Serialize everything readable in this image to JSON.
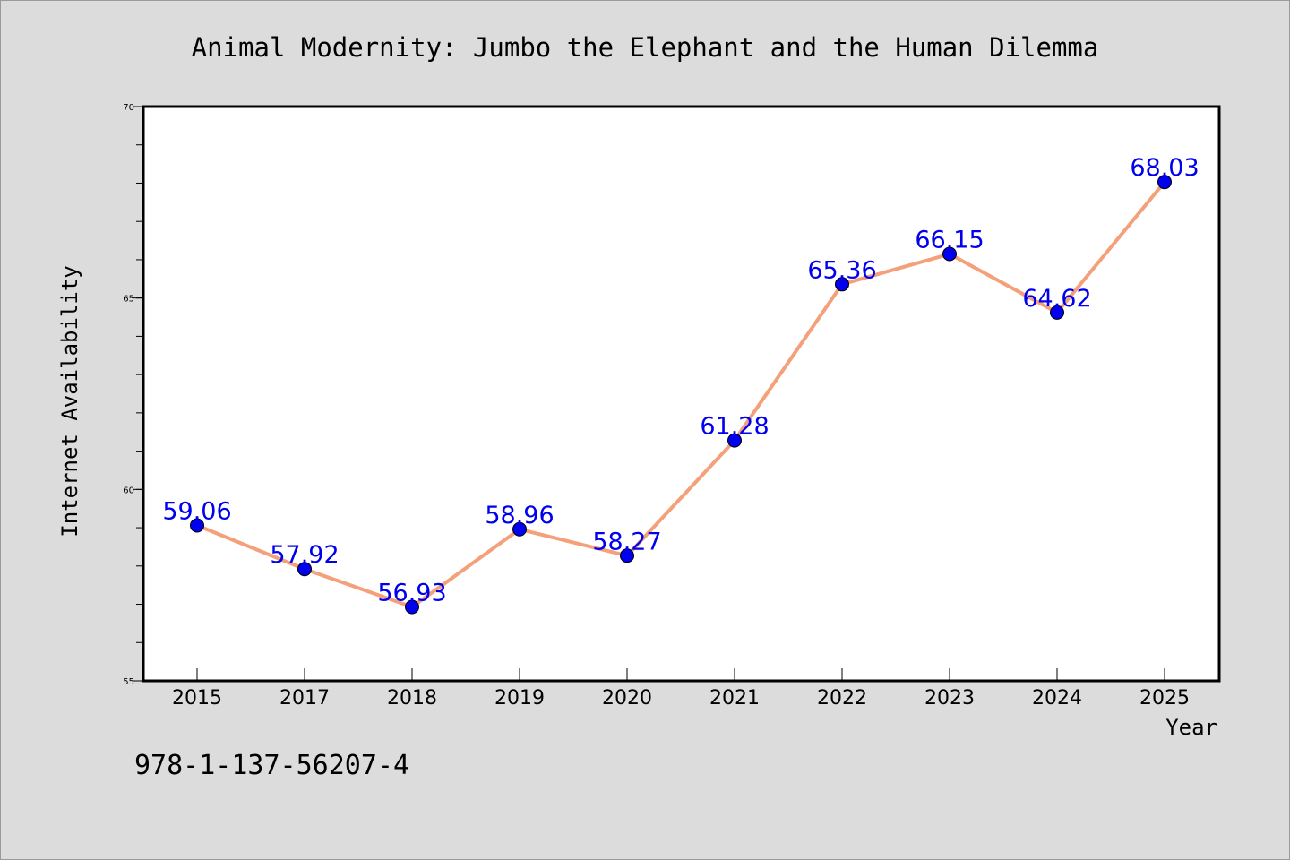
{
  "chart_data": {
    "type": "line",
    "title": "Animal Modernity: Jumbo the Elephant and the Human Dilemma",
    "xlabel": "Year",
    "ylabel": "Internet Availability",
    "categories": [
      "2015",
      "2017",
      "2018",
      "2019",
      "2020",
      "2021",
      "2022",
      "2023",
      "2024",
      "2025"
    ],
    "values": [
      59.06,
      57.92,
      56.93,
      58.96,
      58.27,
      61.28,
      65.36,
      66.15,
      64.62,
      68.03
    ],
    "data_labels": [
      "59.06",
      "57.92",
      "56.93",
      "58.96",
      "58.27",
      "61.28",
      "65.36",
      "66.15",
      "64.62",
      "68.03"
    ],
    "ylim": [
      55,
      70
    ],
    "yticks": [
      55,
      60,
      65,
      70
    ],
    "ytick_labels": [
      "55",
      "60",
      "65",
      "70"
    ],
    "yminor_step": 1,
    "grid": false,
    "legend": "none",
    "colors": {
      "line": "#f4a07a",
      "marker": "#0000ee",
      "label": "#0000ee",
      "background": "#dcdcdc",
      "plot_background": "#ffffff"
    }
  },
  "footer_text": "978-1-137-56207-4"
}
